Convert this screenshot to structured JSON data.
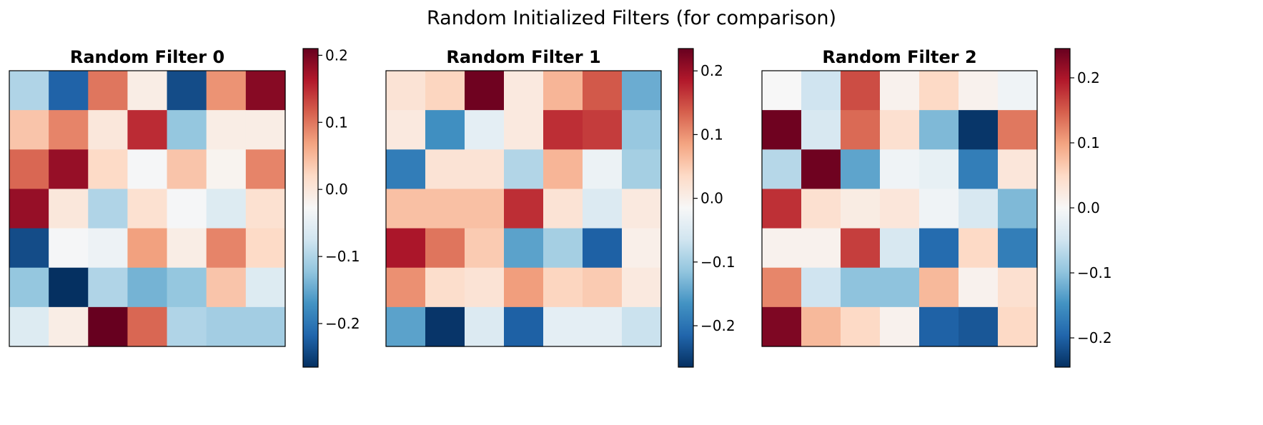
{
  "suptitle": "Random Initialized Filters (for comparison)",
  "colormap": "RdBu_r",
  "chart_data": [
    {
      "type": "heatmap",
      "title": "Random Filter 0",
      "colorbar": {
        "vmin": -0.265,
        "vmax": 0.21,
        "ticks": [
          0.2,
          0.1,
          0.0,
          -0.1,
          -0.2
        ],
        "tick_labels": [
          "0.2",
          "0.1",
          "0.0",
          "−0.1",
          "−0.2"
        ]
      },
      "values": [
        [
          -0.1,
          -0.22,
          0.1,
          -0.01,
          -0.24,
          0.08,
          0.19
        ],
        [
          0.04,
          0.09,
          0.0,
          0.15,
          -0.12,
          -0.01,
          -0.01
        ],
        [
          0.11,
          0.18,
          0.02,
          -0.03,
          0.04,
          -0.02,
          0.09
        ],
        [
          0.18,
          0.0,
          -0.1,
          0.01,
          -0.03,
          -0.06,
          0.01
        ],
        [
          -0.24,
          -0.03,
          -0.04,
          0.07,
          -0.01,
          0.09,
          0.02
        ],
        [
          -0.12,
          -0.27,
          -0.1,
          -0.14,
          -0.12,
          0.04,
          -0.06
        ],
        [
          -0.06,
          -0.01,
          0.21,
          0.11,
          -0.1,
          -0.11,
          -0.11
        ]
      ]
    },
    {
      "type": "heatmap",
      "title": "Random Filter 1",
      "colorbar": {
        "vmin": -0.265,
        "vmax": 0.235,
        "ticks": [
          0.2,
          0.1,
          0.0,
          -0.1,
          -0.2
        ],
        "tick_labels": [
          "0.2",
          "0.1",
          "0.0",
          "−0.1",
          "−0.2"
        ]
      },
      "values": [
        [
          0.02,
          0.04,
          0.23,
          0.01,
          0.07,
          0.14,
          -0.14
        ],
        [
          0.01,
          -0.17,
          -0.04,
          0.01,
          0.17,
          0.16,
          -0.11
        ],
        [
          -0.19,
          0.02,
          0.02,
          -0.09,
          0.07,
          -0.03,
          -0.1
        ],
        [
          0.06,
          0.06,
          0.06,
          0.17,
          0.02,
          -0.05,
          0.01
        ],
        [
          0.19,
          0.12,
          0.05,
          -0.15,
          -0.1,
          -0.22,
          0.0
        ],
        [
          0.1,
          0.03,
          0.02,
          0.09,
          0.04,
          0.05,
          0.01
        ],
        [
          -0.15,
          -0.26,
          -0.05,
          -0.22,
          -0.04,
          -0.04,
          -0.07
        ]
      ]
    },
    {
      "type": "heatmap",
      "title": "Random Filter 2",
      "colorbar": {
        "vmin": -0.245,
        "vmax": 0.245,
        "ticks": [
          0.2,
          0.1,
          0.0,
          -0.1,
          -0.2
        ],
        "tick_labels": [
          "0.2",
          "0.1",
          "0.0",
          "−0.1",
          "−0.2"
        ]
      },
      "values": [
        [
          0.0,
          -0.05,
          0.16,
          0.01,
          0.05,
          0.01,
          -0.01
        ],
        [
          0.24,
          -0.04,
          0.14,
          0.04,
          -0.11,
          -0.24,
          0.13
        ],
        [
          -0.07,
          0.24,
          -0.13,
          -0.01,
          -0.02,
          -0.17,
          0.03
        ],
        [
          0.18,
          0.04,
          0.02,
          0.03,
          -0.01,
          -0.04,
          -0.11
        ],
        [
          0.01,
          0.01,
          0.17,
          -0.04,
          -0.19,
          0.05,
          -0.17
        ],
        [
          0.12,
          -0.05,
          -0.1,
          -0.1,
          0.08,
          0.01,
          0.04
        ],
        [
          0.23,
          0.08,
          0.05,
          0.01,
          -0.2,
          -0.21,
          0.05
        ]
      ]
    }
  ]
}
